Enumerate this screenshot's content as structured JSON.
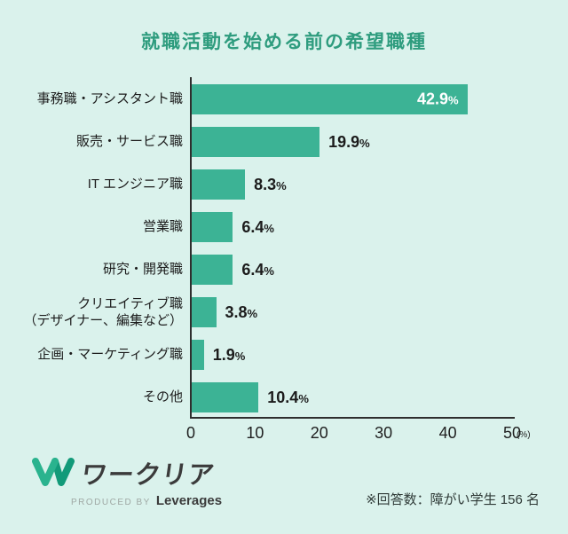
{
  "chart_data": {
    "type": "bar",
    "orientation": "horizontal",
    "title": "就職活動を始める前の希望職種",
    "categories": [
      "事務職・アシスタント職",
      "販売・サービス職",
      "IT エンジニア職",
      "営業職",
      "研究・開発職",
      "クリエイティブ職\n（デザイナー、編集など）",
      "企画・マーケティング職",
      "その他"
    ],
    "values": [
      42.9,
      19.9,
      8.3,
      6.4,
      6.4,
      3.8,
      1.9,
      10.4
    ],
    "value_suffix": "%",
    "xlim": [
      0,
      50
    ],
    "xticks": [
      0,
      10,
      20,
      30,
      40,
      50
    ],
    "x_unit": "(%)",
    "inside_label_indices": [
      0
    ],
    "grid": false,
    "legend": false
  },
  "footer": {
    "logo_text": "ワークリア",
    "produced_by_label": "PRODUCED BY",
    "producer_name": "Leverages",
    "note": "※回答数：障がい学生 156 名"
  },
  "colors": {
    "background": "#daf2ec",
    "bar": "#3cb395",
    "title": "#2e9c7e",
    "text": "#1c1c1c",
    "axis": "#2e2e2e",
    "value_inside": "#ffffff",
    "logo_green": "#2ab38e",
    "logo_teal": "#129a79"
  }
}
